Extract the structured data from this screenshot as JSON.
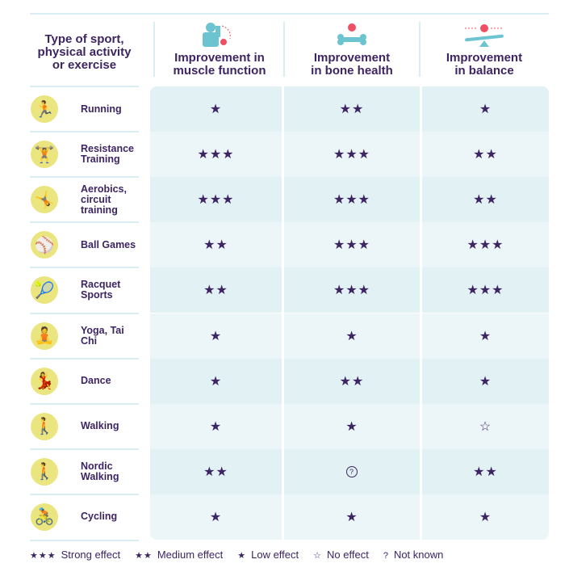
{
  "header": {
    "first": "Type of sport, physical activity or exercise",
    "columns": [
      {
        "label": "Improvement in muscle function",
        "icon": "muscle-arm-icon"
      },
      {
        "label": "Improvement in bone health",
        "icon": "bone-icon"
      },
      {
        "label": "Improvement in balance",
        "icon": "seesaw-balance-icon"
      }
    ]
  },
  "colors": {
    "band_a": "#e1f1f4",
    "band_b": "#ecf6f8",
    "text": "#3d2463",
    "badge": "#ebe57f",
    "accent_teal": "#6cc4d1",
    "accent_red": "#ee4f64"
  },
  "rows": [
    {
      "label": "Running",
      "icon": "running-icon",
      "glyph": "🏃",
      "ratings": [
        "★",
        "★★",
        "★"
      ]
    },
    {
      "label": "Resistance Training",
      "icon": "dumbbell-icon",
      "glyph": "🏋",
      "ratings": [
        "★★★",
        "★★★",
        "★★"
      ]
    },
    {
      "label": "Aerobics, circuit training",
      "icon": "aerobics-step-icon",
      "glyph": "🤸",
      "ratings": [
        "★★★",
        "★★★",
        "★★"
      ]
    },
    {
      "label": "Ball Games",
      "icon": "baseball-bat-icon",
      "glyph": "⚾",
      "ratings": [
        "★★",
        "★★★",
        "★★★"
      ]
    },
    {
      "label": "Racquet Sports",
      "icon": "tennis-racquet-icon",
      "glyph": "🎾",
      "ratings": [
        "★★",
        "★★★",
        "★★★"
      ]
    },
    {
      "label": "Yoga, Tai Chi",
      "icon": "yoga-icon",
      "glyph": "🧘",
      "ratings": [
        "★",
        "★",
        "★"
      ]
    },
    {
      "label": "Dance",
      "icon": "dance-icon",
      "glyph": "💃",
      "ratings": [
        "★",
        "★★",
        "★"
      ]
    },
    {
      "label": "Walking",
      "icon": "walking-icon",
      "glyph": "🚶",
      "ratings": [
        "★",
        "★",
        "☆"
      ]
    },
    {
      "label": "Nordic Walking",
      "icon": "nordic-walking-icon",
      "glyph": "🚶",
      "ratings": [
        "★★",
        "?",
        "★★"
      ]
    },
    {
      "label": "Cycling",
      "icon": "cycling-icon",
      "glyph": "🚴",
      "ratings": [
        "★",
        "★",
        "★"
      ]
    }
  ],
  "legend": [
    {
      "symbol": "★★★",
      "label": "Strong effect"
    },
    {
      "symbol": "★★",
      "label": "Medium effect"
    },
    {
      "symbol": "★",
      "label": "Low effect"
    },
    {
      "symbol": "☆",
      "label": "No effect"
    },
    {
      "symbol": "?",
      "label": "Not known"
    }
  ]
}
